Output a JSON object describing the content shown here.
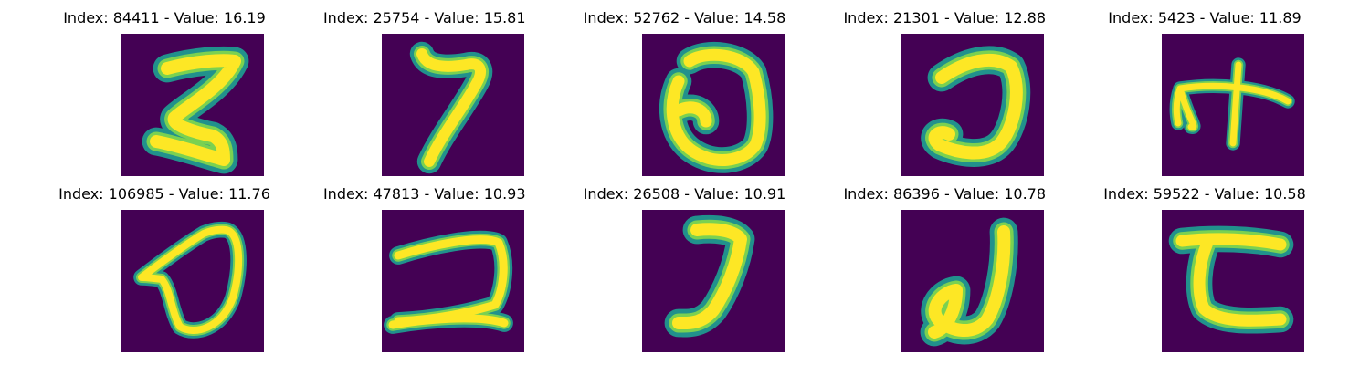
{
  "colormap": {
    "background": "#440154",
    "edge": "#21918c",
    "mid": "#7ad151",
    "core": "#fde725"
  },
  "panels": [
    {
      "title": "Index: 84411 - Value: 16.19",
      "image": "digit-5-mirrored"
    },
    {
      "title": "Index: 25754 - Value: 15.81",
      "image": "digit-7"
    },
    {
      "title": "Index: 52762 - Value: 14.58",
      "image": "digit-0-open"
    },
    {
      "title": "Index: 21301 - Value: 12.88",
      "image": "digit-c-reversed"
    },
    {
      "title": "Index: 5423 - Value: 11.89",
      "image": "digit-4-cross"
    },
    {
      "title": "Index: 106985 - Value: 11.76",
      "image": "digit-0-loop"
    },
    {
      "title": "Index: 47813 - Value: 10.93",
      "image": "digit-2-flat"
    },
    {
      "title": "Index: 26508 - Value: 10.91",
      "image": "digit-7-hook"
    },
    {
      "title": "Index: 86396 - Value: 10.78",
      "image": "digit-j-hook"
    },
    {
      "title": "Index: 59522 - Value: 10.58",
      "image": "digit-c-bar"
    }
  ]
}
